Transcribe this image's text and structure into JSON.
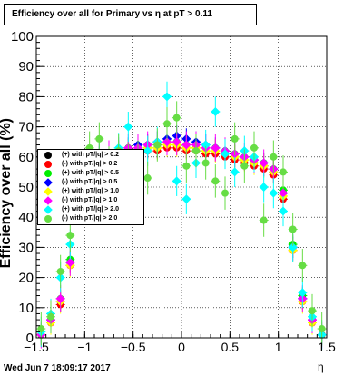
{
  "title": "Efficiency over all for Primary vs η at pT > 0.11",
  "footer_timestamp": "Wed Jun  7 18:09:17 2017",
  "chart_data": {
    "type": "scatter",
    "title": "Efficiency over all for Primary vs η at pT > 0.11",
    "xlabel": "η",
    "ylabel": "Efficiency over all (%)",
    "xlim": [
      -1.5,
      1.5
    ],
    "ylim": [
      0,
      100
    ],
    "x_ticks": [
      -1.5,
      -1,
      -0.5,
      0,
      0.5,
      1,
      1.5
    ],
    "x_tick_labels": [
      "−1.5",
      "−1",
      "−0.5",
      "0",
      "0.5",
      "1",
      "1.5"
    ],
    "y_ticks": [
      0,
      10,
      20,
      30,
      40,
      50,
      60,
      70,
      80,
      90,
      100
    ],
    "y_tick_labels": [
      "0",
      "10",
      "20",
      "30",
      "40",
      "50",
      "60",
      "70",
      "80",
      "90",
      "100"
    ],
    "grid": true,
    "legend_position": "left, mid-height",
    "series": [
      {
        "name": "(+) with pT/|q| > 0.2",
        "color": "#000000",
        "marker": "circle",
        "x": [
          -1.45,
          -1.35,
          -1.25,
          -1.15,
          -1.05,
          -0.95,
          -0.85,
          -0.75,
          -0.65,
          -0.55,
          -0.45,
          -0.35,
          -0.25,
          -0.15,
          -0.05,
          0.05,
          0.15,
          0.25,
          0.35,
          0.45,
          0.55,
          0.65,
          0.75,
          0.85,
          0.95,
          1.05,
          1.15,
          1.25,
          1.35,
          1.45
        ],
        "y": [
          1,
          6,
          12,
          25,
          44,
          55,
          59,
          60,
          61,
          62,
          62,
          63,
          63,
          64,
          64,
          63,
          63,
          62,
          62,
          61,
          60,
          59,
          58,
          57,
          55,
          48,
          30,
          13,
          6,
          1
        ]
      },
      {
        "name": "(-) with pT/|q| > 0.2",
        "color": "#ff0000",
        "marker": "circle",
        "x": [
          -1.45,
          -1.35,
          -1.25,
          -1.15,
          -1.05,
          -0.95,
          -0.85,
          -0.75,
          -0.65,
          -0.55,
          -0.45,
          -0.35,
          -0.25,
          -0.15,
          -0.05,
          0.05,
          0.15,
          0.25,
          0.35,
          0.45,
          0.55,
          0.65,
          0.75,
          0.85,
          0.95,
          1.05,
          1.15,
          1.25,
          1.35,
          1.45
        ],
        "y": [
          1,
          5,
          11,
          24,
          42,
          53,
          58,
          59,
          60,
          61,
          61,
          62,
          62,
          63,
          63,
          62,
          62,
          61,
          61,
          60,
          59,
          58,
          57,
          56,
          54,
          46,
          29,
          12,
          5,
          1
        ]
      },
      {
        "name": "(+) with pT/|q| > 0.5",
        "color": "#00ee00",
        "marker": "circle",
        "x": [
          -1.45,
          -1.35,
          -1.25,
          -1.15,
          -1.05,
          -0.95,
          -0.85,
          -0.75,
          -0.65,
          -0.55,
          -0.45,
          -0.35,
          -0.25,
          -0.15,
          -0.05,
          0.05,
          0.15,
          0.25,
          0.35,
          0.45,
          0.55,
          0.65,
          0.75,
          0.85,
          0.95,
          1.05,
          1.15,
          1.25,
          1.35,
          1.45
        ],
        "y": [
          1,
          6,
          13,
          26,
          45,
          56,
          60,
          61,
          62,
          63,
          63,
          64,
          64,
          65,
          65,
          64,
          64,
          63,
          63,
          62,
          61,
          60,
          59,
          58,
          56,
          49,
          31,
          14,
          6,
          1
        ]
      },
      {
        "name": "(-) with pT/|q| > 0.5",
        "color": "#0000ff",
        "marker": "diamond",
        "x": [
          -1.45,
          -1.35,
          -1.25,
          -1.15,
          -1.05,
          -0.95,
          -0.85,
          -0.75,
          -0.65,
          -0.55,
          -0.45,
          -0.35,
          -0.25,
          -0.15,
          -0.05,
          0.05,
          0.15,
          0.25,
          0.35,
          0.45,
          0.55,
          0.65,
          0.75,
          0.85,
          0.95,
          1.05,
          1.15,
          1.25,
          1.35,
          1.45
        ],
        "y": [
          1,
          6,
          12,
          25,
          44,
          56,
          60,
          61,
          62,
          63,
          64,
          64,
          65,
          66,
          67,
          66,
          65,
          64,
          63,
          62,
          61,
          60,
          59,
          58,
          56,
          48,
          30,
          13,
          6,
          1
        ]
      },
      {
        "name": "(+) with pT/|q| > 1.0",
        "color": "#ffff00",
        "marker": "diamond",
        "x": [
          -1.45,
          -1.35,
          -1.25,
          -1.15,
          -1.05,
          -0.95,
          -0.85,
          -0.75,
          -0.65,
          -0.55,
          -0.45,
          -0.35,
          -0.25,
          -0.15,
          -0.05,
          0.05,
          0.15,
          0.25,
          0.35,
          0.45,
          0.55,
          0.65,
          0.75,
          0.85,
          0.95,
          1.05,
          1.15,
          1.25,
          1.35,
          1.45
        ],
        "y": [
          1,
          5,
          12,
          24,
          43,
          55,
          59,
          60,
          61,
          62,
          62,
          63,
          63,
          64,
          64,
          63,
          63,
          62,
          62,
          61,
          60,
          59,
          58,
          57,
          55,
          47,
          29,
          12,
          5,
          1
        ]
      },
      {
        "name": "(-) with pT/|q| > 1.0",
        "color": "#ff00ff",
        "marker": "diamond",
        "x": [
          -1.45,
          -1.35,
          -1.25,
          -1.15,
          -1.05,
          -0.95,
          -0.85,
          -0.75,
          -0.65,
          -0.55,
          -0.45,
          -0.35,
          -0.25,
          -0.15,
          -0.05,
          0.05,
          0.15,
          0.25,
          0.35,
          0.45,
          0.55,
          0.65,
          0.75,
          0.85,
          0.95,
          1.05,
          1.15,
          1.25,
          1.35,
          1.45
        ],
        "y": [
          1,
          6,
          13,
          25,
          44,
          56,
          60,
          61,
          62,
          63,
          63,
          64,
          64,
          65,
          65,
          64,
          64,
          63,
          63,
          62,
          61,
          60,
          59,
          58,
          56,
          48,
          30,
          13,
          6,
          1
        ]
      },
      {
        "name": "(+) with pT/|q| > 2.0",
        "color": "#00ffff",
        "marker": "diamond",
        "x": [
          -1.45,
          -1.35,
          -1.25,
          -1.15,
          -1.05,
          -0.95,
          -0.85,
          -0.75,
          -0.65,
          -0.55,
          -0.45,
          -0.35,
          -0.25,
          -0.15,
          -0.05,
          0.05,
          0.15,
          0.25,
          0.35,
          0.45,
          0.55,
          0.65,
          0.75,
          0.85,
          0.95,
          1.05,
          1.15,
          1.25,
          1.35,
          1.45
        ],
        "y": [
          2,
          8,
          20,
          31,
          51,
          55,
          60,
          58,
          63,
          70,
          56,
          62,
          65,
          80,
          52,
          46,
          58,
          64,
          75,
          61,
          55,
          62,
          60,
          50,
          48,
          42,
          30,
          15,
          7,
          1
        ]
      },
      {
        "name": "(-) with pT/|q| > 2.0",
        "color": "#66dd44",
        "marker": "circle",
        "x": [
          -1.45,
          -1.35,
          -1.25,
          -1.15,
          -1.05,
          -0.95,
          -0.85,
          -0.75,
          -0.65,
          -0.55,
          -0.45,
          -0.35,
          -0.25,
          -0.15,
          -0.05,
          0.05,
          0.15,
          0.25,
          0.35,
          0.45,
          0.55,
          0.65,
          0.75,
          0.85,
          0.95,
          1.05,
          1.15,
          1.25,
          1.35,
          1.45
        ],
        "y": [
          3,
          7,
          22,
          34,
          50,
          63,
          66,
          58,
          62,
          59,
          60,
          53,
          64,
          71,
          73,
          57,
          62,
          58,
          52,
          48,
          66,
          57,
          63,
          39,
          60,
          55,
          36,
          24,
          9,
          3
        ]
      }
    ]
  }
}
